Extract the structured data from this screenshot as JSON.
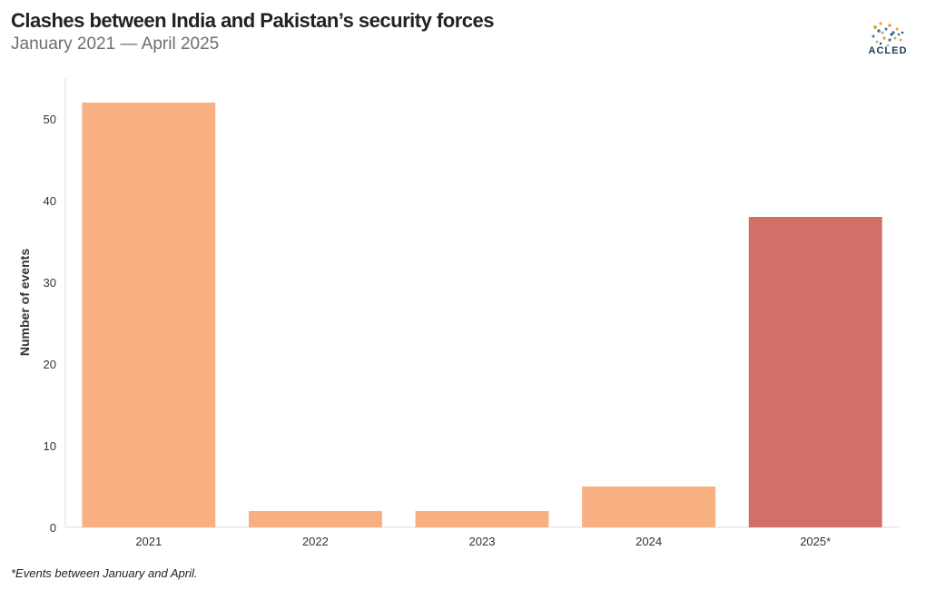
{
  "header": {
    "title": "Clashes between India and Pakistan’s security forces",
    "subtitle": "January 2021 — April 2025"
  },
  "logo": {
    "label": "ACLED"
  },
  "footnote": "*Events between January and April.",
  "colors": {
    "bar_default": "#f8b083",
    "bar_highlight": "#d27068",
    "axis": "#dddddd",
    "tick_text": "#333333"
  },
  "chart_data": {
    "type": "bar",
    "categories": [
      "2021",
      "2022",
      "2023",
      "2024",
      "2025*"
    ],
    "values": [
      52,
      2,
      2,
      5,
      38
    ],
    "highlight": [
      false,
      false,
      false,
      false,
      true
    ],
    "ylabel": "Number of events",
    "xlabel": "",
    "ylim": [
      0,
      55
    ],
    "yticks": [
      0,
      10,
      20,
      30,
      40,
      50
    ],
    "grid": false
  }
}
